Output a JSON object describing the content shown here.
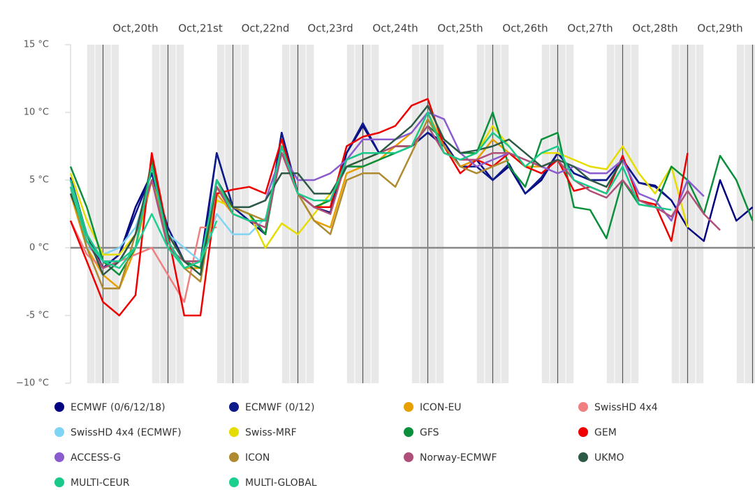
{
  "chart_data": {
    "type": "line",
    "categories": [
      null,
      null,
      null,
      null,
      "Oct,20th",
      null,
      null,
      null,
      "Oct,21st",
      null,
      null,
      null,
      "Oct,22nd",
      null,
      null,
      null,
      "Oct,23rd",
      null,
      null,
      null,
      "Oct,24th",
      null,
      null,
      null,
      "Oct,25th",
      null,
      null,
      null,
      "Oct,26th",
      null,
      null,
      null,
      "Oct,27th",
      null,
      null,
      null,
      "Oct,28th",
      null,
      null,
      null,
      "Oct,29th",
      null,
      null
    ],
    "ylim": [
      -10,
      15
    ],
    "yticks": [
      {
        "value": -10,
        "label": "−10 °C"
      },
      {
        "value": -5,
        "label": "-5 °C"
      },
      {
        "value": 0,
        "label": "0 °C"
      },
      {
        "value": 5,
        "label": "5 °C"
      },
      {
        "value": 10,
        "label": "10 °C"
      },
      {
        "value": 15,
        "label": "15 °C"
      }
    ],
    "grid": true,
    "series": [
      {
        "name": "ECMWF (0/6/12/18)",
        "color": "#000080",
        "values": [
          5,
          1,
          -1.5,
          -0.5,
          3,
          5.5,
          1,
          -1,
          -1,
          7,
          3,
          2,
          1,
          8.5,
          4,
          3,
          2.6,
          7,
          9,
          7,
          7.5,
          7.5,
          8.5,
          7.5,
          6,
          6.5,
          5,
          6,
          4,
          5,
          7,
          5.5,
          5,
          5,
          6.5,
          4.8,
          4.6,
          3.5,
          1.5,
          0.5,
          5,
          2,
          3
        ]
      },
      {
        "name": "ECMWF (0/12)",
        "color": "#0d1a8a",
        "values": [
          5.2,
          1,
          -1.5,
          -0.5,
          2.5,
          5.5,
          1.5,
          -1,
          -1.5,
          7,
          3,
          2,
          1,
          8.5,
          4,
          3,
          2.5,
          7,
          9.2,
          7,
          7.5,
          7.5,
          8.5,
          7.8,
          6,
          6,
          5,
          6.2,
          4,
          5.2,
          7,
          5.5,
          5,
          5,
          6.5,
          4.8,
          4.5,
          3.5,
          null,
          null,
          null,
          null,
          null
        ]
      },
      {
        "name": "ICON-EU",
        "color": "#e8a000",
        "values": [
          4,
          0,
          -2,
          -3,
          0,
          5,
          0.5,
          -1.5,
          -1.5,
          4,
          2.5,
          2,
          2,
          7,
          4,
          2,
          1.5,
          5.5,
          6,
          6.5,
          7.5,
          8.5,
          10,
          7.5,
          6,
          6.5,
          8,
          7,
          6,
          6,
          6.5,
          null,
          null,
          null,
          null,
          null,
          null,
          null,
          null,
          null,
          null,
          null,
          null
        ]
      },
      {
        "name": "SwissHD 4x4",
        "color": "#f08080",
        "values": [
          2,
          -0.5,
          -1.5,
          -1,
          -0.5,
          0,
          -2,
          -4,
          1.5,
          1.5,
          null,
          null,
          null,
          null,
          null,
          null,
          null,
          null,
          null,
          null,
          null,
          null,
          null,
          null,
          null,
          null,
          null,
          null,
          null,
          null,
          null,
          null,
          null,
          null,
          null,
          null,
          null,
          null,
          null,
          null,
          null,
          null,
          null
        ]
      },
      {
        "name": "SwissHD 4x4 (ECMWF)",
        "color": "#7fd4f5",
        "values": [
          5,
          0,
          -0.5,
          0,
          1.5,
          5,
          1,
          0,
          -1,
          2.5,
          1,
          1,
          2.2,
          null,
          null,
          null,
          null,
          null,
          null,
          null,
          null,
          null,
          null,
          null,
          null,
          null,
          null,
          null,
          null,
          null,
          null,
          null,
          null,
          null,
          null,
          null,
          null,
          null,
          null,
          null,
          null,
          null,
          null
        ]
      },
      {
        "name": "Swiss-MRF",
        "color": "#e5dc00",
        "values": [
          5.5,
          2,
          -0.5,
          -0.5,
          1,
          5,
          1,
          -1,
          -1.5,
          3.5,
          3,
          2.5,
          0,
          1.8,
          1,
          2.5,
          4,
          6,
          6.5,
          7,
          7.5,
          7.5,
          10,
          7,
          6.5,
          7,
          9,
          7.5,
          6,
          7,
          7,
          6.5,
          6,
          5.8,
          7.5,
          5.5,
          4,
          6,
          1.5,
          null,
          null,
          null,
          null
        ]
      },
      {
        "name": "GFS",
        "color": "#0a8f3a",
        "values": [
          6,
          3,
          -1,
          -2,
          0,
          6.5,
          1,
          -1,
          -1.5,
          5,
          3,
          2.5,
          1,
          7.5,
          4,
          3,
          3.5,
          6,
          6,
          6.5,
          7,
          7.5,
          9,
          8,
          7,
          7,
          10,
          6,
          4.5,
          8,
          8.5,
          3,
          2.8,
          0.7,
          5,
          3.2,
          3,
          6,
          5,
          2.5,
          6.8,
          5,
          2
        ]
      },
      {
        "name": "GEM",
        "color": "#ee0000",
        "values": [
          2,
          -1,
          -4,
          -5,
          -3.5,
          7,
          1,
          -5,
          -5,
          4,
          4.3,
          4.5,
          4,
          8,
          4,
          3,
          3,
          7.5,
          8.2,
          8.5,
          9,
          10.5,
          11,
          7.5,
          5.5,
          6.5,
          6,
          7,
          6,
          5.5,
          6.5,
          4.2,
          4.5,
          4,
          6.8,
          3.5,
          3.2,
          0.5,
          7,
          null,
          null,
          null,
          null
        ]
      },
      {
        "name": "ACCESS-G",
        "color": "#8a5cd0",
        "values": [
          4.5,
          0.5,
          -1,
          -1,
          1,
          5,
          0.5,
          -1.5,
          -1,
          5,
          3,
          3,
          3.5,
          7,
          5,
          5,
          5.5,
          6.5,
          8,
          8,
          8,
          8.5,
          10,
          9.5,
          7,
          6,
          6.5,
          7,
          6.5,
          6,
          5.5,
          6,
          5.5,
          5.5,
          6.5,
          4,
          3.5,
          2,
          5,
          3.8,
          null,
          null,
          null
        ]
      },
      {
        "name": "ICON",
        "color": "#b08a30",
        "values": [
          4.5,
          0,
          -3,
          -3,
          1,
          5,
          0.5,
          -1.5,
          -2.5,
          4.5,
          3,
          2.5,
          2,
          7.5,
          4,
          2,
          1,
          5,
          5.5,
          5.5,
          4.5,
          7,
          9.5,
          7.5,
          6,
          5.5,
          6,
          6.5,
          null,
          null,
          null,
          null,
          null,
          null,
          null,
          null,
          null,
          null,
          null,
          null,
          null,
          null,
          null
        ]
      },
      {
        "name": "Norway-ECMWF",
        "color": "#b05078",
        "values": [
          4.5,
          0.5,
          -1.5,
          -1,
          1,
          5,
          0,
          -1,
          -1,
          4.5,
          2.5,
          2,
          1.5,
          7,
          4,
          3,
          2.5,
          6.5,
          7,
          7,
          7.5,
          7.5,
          9,
          7,
          6.5,
          6.5,
          7,
          7,
          6.5,
          6,
          6.5,
          5,
          4.2,
          3.7,
          5,
          3.5,
          3,
          2.3,
          4.2,
          2.5,
          1.3,
          null,
          null
        ]
      },
      {
        "name": "UKMO",
        "color": "#2d5a45",
        "values": [
          4,
          1,
          -2,
          -1,
          1,
          6,
          1,
          -1,
          -2,
          5,
          3,
          3,
          3.5,
          5.5,
          5.5,
          4,
          4,
          6,
          6.5,
          7,
          8,
          9,
          10.5,
          8,
          7,
          7.2,
          7.5,
          8,
          7,
          6,
          6.5,
          6,
          5,
          4.5,
          6.5,
          null,
          null,
          null,
          null,
          null,
          null,
          null,
          null
        ]
      },
      {
        "name": "MULTI-CEUR",
        "color": "#19c98a",
        "values": [
          5,
          1,
          -1,
          -1,
          0,
          6,
          0.5,
          -1.5,
          -1,
          5,
          2.5,
          2,
          2,
          7.5,
          4,
          3.5,
          3.5,
          6.5,
          7,
          7,
          7,
          7.5,
          10,
          7,
          6.5,
          7,
          8.5,
          7.5,
          6,
          7,
          7.5,
          5,
          4.5,
          4,
          6,
          3.2,
          3,
          2.8,
          null,
          null,
          null,
          null,
          null
        ]
      },
      {
        "name": "MULTI-GLOBAL",
        "color": "#1dcf8f",
        "values": [
          4.5,
          0.5,
          -1,
          -1.5,
          0,
          2.5,
          0,
          -1.5,
          -1,
          2,
          null,
          null,
          null,
          null,
          null,
          null,
          null,
          null,
          null,
          null,
          null,
          null,
          null,
          null,
          null,
          null,
          null,
          null,
          null,
          null,
          null,
          null,
          null,
          null,
          null,
          null,
          null,
          null,
          null,
          null,
          null,
          null,
          null
        ]
      }
    ]
  }
}
